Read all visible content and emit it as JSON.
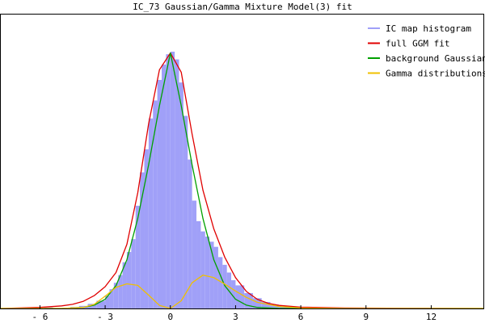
{
  "chart_data": {
    "type": "line",
    "title": "IC_73 Gaussian/Gamma Mixture Model(3) fit",
    "xlabel": "",
    "ylabel": "",
    "xlim": [
      -7.8,
      14.4
    ],
    "ylim": [
      0,
      1.0
    ],
    "x_ticks": [
      -6,
      -3,
      0,
      3,
      6,
      9,
      12
    ],
    "x_tick_labels": [
      "- 6",
      "- 3",
      "0",
      "3",
      "6",
      "9",
      "12"
    ],
    "grid": false,
    "legend_position": "top-right",
    "series": [
      {
        "name": "IC map histogram",
        "kind": "histogram",
        "color": "#a0a0f8",
        "x": [
          -7.8,
          -7.4,
          -7.0,
          -6.6,
          -6.2,
          -5.8,
          -5.4,
          -5.0,
          -4.6,
          -4.2,
          -3.8,
          -3.4,
          -3.0,
          -2.8,
          -2.6,
          -2.4,
          -2.2,
          -2.0,
          -1.8,
          -1.6,
          -1.4,
          -1.2,
          -1.0,
          -0.8,
          -0.6,
          -0.4,
          -0.2,
          0.0,
          0.2,
          0.4,
          0.6,
          0.8,
          1.0,
          1.2,
          1.4,
          1.6,
          1.8,
          2.0,
          2.2,
          2.4,
          2.6,
          2.8,
          3.0,
          3.4,
          3.8,
          4.2,
          4.6,
          5.0,
          5.5,
          6.0,
          7.0,
          8.0,
          9.0,
          10.0,
          11.0,
          12.0,
          13.0,
          14.0
        ],
        "y": [
          0.0,
          0.0,
          0.0,
          0.003,
          0.0,
          0.004,
          0.0,
          0.0,
          0.006,
          0.01,
          0.018,
          0.03,
          0.05,
          0.075,
          0.1,
          0.13,
          0.18,
          0.22,
          0.27,
          0.4,
          0.53,
          0.62,
          0.74,
          0.81,
          0.89,
          0.95,
          0.99,
          1.0,
          0.97,
          0.88,
          0.75,
          0.58,
          0.42,
          0.34,
          0.3,
          0.28,
          0.26,
          0.24,
          0.2,
          0.17,
          0.14,
          0.11,
          0.09,
          0.06,
          0.04,
          0.025,
          0.015,
          0.01,
          0.006,
          0.003,
          0.0,
          0.0,
          0.0,
          0.0,
          0.003,
          0.0,
          0.0,
          0.0
        ]
      },
      {
        "name": "full GGM fit",
        "kind": "line",
        "color": "#e00000",
        "x": [
          -7.8,
          -6.0,
          -5.0,
          -4.5,
          -4.0,
          -3.5,
          -3.0,
          -2.5,
          -2.0,
          -1.5,
          -1.0,
          -0.5,
          0.0,
          0.5,
          1.0,
          1.5,
          2.0,
          2.5,
          3.0,
          3.5,
          4.0,
          4.5,
          5.0,
          6.0,
          8.0,
          10.0,
          14.4
        ],
        "y": [
          0.0,
          0.004,
          0.01,
          0.016,
          0.028,
          0.05,
          0.085,
          0.14,
          0.25,
          0.45,
          0.72,
          0.93,
          0.995,
          0.92,
          0.68,
          0.46,
          0.31,
          0.2,
          0.12,
          0.066,
          0.036,
          0.02,
          0.012,
          0.005,
          0.002,
          0.001,
          0.0
        ]
      },
      {
        "name": "background Gaussian",
        "kind": "line",
        "color": "#00a000",
        "x": [
          -7.8,
          -5.0,
          -4.0,
          -3.5,
          -3.0,
          -2.5,
          -2.0,
          -1.5,
          -1.0,
          -0.5,
          0.0,
          0.5,
          1.0,
          1.5,
          2.0,
          2.5,
          3.0,
          3.5,
          4.0,
          5.0,
          14.4
        ],
        "y": [
          0.0,
          0.0,
          0.004,
          0.013,
          0.036,
          0.089,
          0.19,
          0.35,
          0.56,
          0.79,
          0.995,
          0.79,
          0.56,
          0.35,
          0.19,
          0.089,
          0.036,
          0.013,
          0.004,
          0.0,
          0.0
        ]
      },
      {
        "name": "Gamma distributions",
        "kind": "line",
        "color": "#f0c000",
        "x": [
          -7.8,
          -5.0,
          -4.0,
          -3.5,
          -3.0,
          -2.5,
          -2.0,
          -1.5,
          -1.0,
          -0.5,
          0.0,
          0.5,
          1.0,
          1.5,
          2.0,
          2.5,
          3.0,
          3.5,
          4.0,
          5.0,
          6.0,
          8.0,
          14.4
        ],
        "y": [
          0.0,
          0.0,
          0.004,
          0.016,
          0.048,
          0.082,
          0.096,
          0.09,
          0.052,
          0.012,
          0.0,
          0.03,
          0.1,
          0.13,
          0.12,
          0.095,
          0.068,
          0.043,
          0.024,
          0.008,
          0.002,
          0.0,
          0.0
        ]
      }
    ]
  }
}
